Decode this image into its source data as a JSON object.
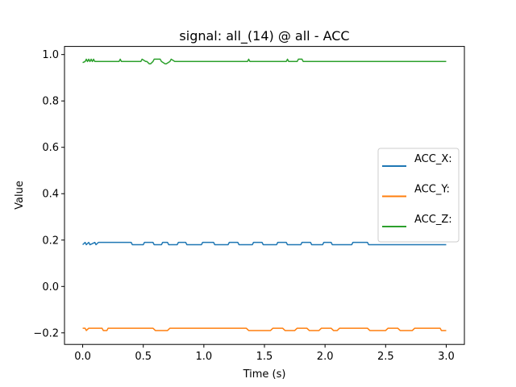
{
  "chart_data": {
    "type": "line",
    "title": "signal: all_(14) @ all - ACC",
    "xlabel": "Time (s)",
    "ylabel": "Value",
    "xlim": [
      -0.15,
      3.15
    ],
    "ylim": [
      -0.25,
      1.035
    ],
    "xticks": [
      0.0,
      0.5,
      1.0,
      1.5,
      2.0,
      2.5,
      3.0
    ],
    "xtick_labels": [
      "0.0",
      "0.5",
      "1.0",
      "1.5",
      "2.0",
      "2.5",
      "3.0"
    ],
    "yticks": [
      -0.2,
      0.0,
      0.2,
      0.4,
      0.6,
      0.8,
      1.0
    ],
    "ytick_labels": [
      "−0.2",
      "0.0",
      "0.2",
      "0.4",
      "0.6",
      "0.8",
      "1.0"
    ],
    "grid": false,
    "legend_position": "center-right",
    "series": [
      {
        "name": "ACC_X:",
        "color": "#1f77b4",
        "x": [
          0.0,
          0.02,
          0.03,
          0.05,
          0.06,
          0.1,
          0.11,
          0.13,
          0.14,
          0.2,
          0.21,
          0.4,
          0.41,
          0.5,
          0.51,
          0.58,
          0.59,
          0.65,
          0.66,
          0.7,
          0.71,
          0.78,
          0.79,
          0.85,
          0.86,
          0.98,
          0.99,
          1.08,
          1.09,
          1.2,
          1.21,
          1.28,
          1.29,
          1.4,
          1.41,
          1.48,
          1.49,
          1.6,
          1.61,
          1.68,
          1.69,
          1.8,
          1.81,
          1.88,
          1.89,
          1.98,
          1.99,
          2.05,
          2.06,
          2.22,
          2.23,
          2.35,
          2.36,
          2.5,
          2.51,
          2.72,
          2.73,
          2.85,
          2.86,
          3.0
        ],
        "values": [
          0.18,
          0.19,
          0.18,
          0.19,
          0.18,
          0.19,
          0.18,
          0.19,
          0.19,
          0.19,
          0.19,
          0.19,
          0.18,
          0.18,
          0.19,
          0.19,
          0.18,
          0.18,
          0.19,
          0.19,
          0.18,
          0.18,
          0.19,
          0.19,
          0.18,
          0.18,
          0.19,
          0.19,
          0.18,
          0.18,
          0.19,
          0.19,
          0.18,
          0.18,
          0.19,
          0.19,
          0.18,
          0.18,
          0.19,
          0.19,
          0.18,
          0.18,
          0.19,
          0.19,
          0.18,
          0.18,
          0.19,
          0.19,
          0.18,
          0.18,
          0.19,
          0.19,
          0.18,
          0.18,
          0.18,
          0.18,
          0.18,
          0.18,
          0.18,
          0.18
        ]
      },
      {
        "name": "ACC_Y:",
        "color": "#ff7f0e",
        "x": [
          0.0,
          0.02,
          0.03,
          0.05,
          0.16,
          0.17,
          0.2,
          0.21,
          0.58,
          0.6,
          0.7,
          0.72,
          0.98,
          1.0,
          1.35,
          1.37,
          1.55,
          1.57,
          1.65,
          1.67,
          1.75,
          1.77,
          1.85,
          1.87,
          1.95,
          1.97,
          2.05,
          2.07,
          2.1,
          2.12,
          2.35,
          2.37,
          2.5,
          2.52,
          2.6,
          2.62,
          2.72,
          2.74,
          2.95,
          2.96,
          3.0
        ],
        "values": [
          -0.18,
          -0.18,
          -0.19,
          -0.18,
          -0.18,
          -0.19,
          -0.19,
          -0.18,
          -0.18,
          -0.19,
          -0.19,
          -0.18,
          -0.18,
          -0.18,
          -0.18,
          -0.19,
          -0.19,
          -0.18,
          -0.18,
          -0.19,
          -0.19,
          -0.18,
          -0.18,
          -0.19,
          -0.19,
          -0.18,
          -0.18,
          -0.19,
          -0.19,
          -0.18,
          -0.18,
          -0.19,
          -0.19,
          -0.18,
          -0.18,
          -0.19,
          -0.19,
          -0.18,
          -0.18,
          -0.19,
          -0.19
        ]
      },
      {
        "name": "ACC_Z:",
        "color": "#2ca02c",
        "x": [
          0.0,
          0.02,
          0.03,
          0.04,
          0.05,
          0.06,
          0.07,
          0.08,
          0.09,
          0.1,
          0.3,
          0.31,
          0.32,
          0.48,
          0.49,
          0.52,
          0.53,
          0.55,
          0.56,
          0.58,
          0.59,
          0.64,
          0.65,
          0.68,
          0.69,
          0.72,
          0.73,
          0.76,
          0.77,
          1.36,
          1.37,
          1.38,
          1.68,
          1.69,
          1.7,
          1.77,
          1.78,
          1.81,
          1.82,
          3.0
        ],
        "values": [
          0.965,
          0.97,
          0.98,
          0.97,
          0.98,
          0.97,
          0.98,
          0.97,
          0.98,
          0.97,
          0.97,
          0.98,
          0.97,
          0.97,
          0.98,
          0.97,
          0.97,
          0.96,
          0.96,
          0.97,
          0.98,
          0.98,
          0.97,
          0.96,
          0.96,
          0.97,
          0.98,
          0.97,
          0.97,
          0.97,
          0.98,
          0.97,
          0.97,
          0.98,
          0.97,
          0.97,
          0.98,
          0.98,
          0.97,
          0.97
        ]
      }
    ]
  }
}
